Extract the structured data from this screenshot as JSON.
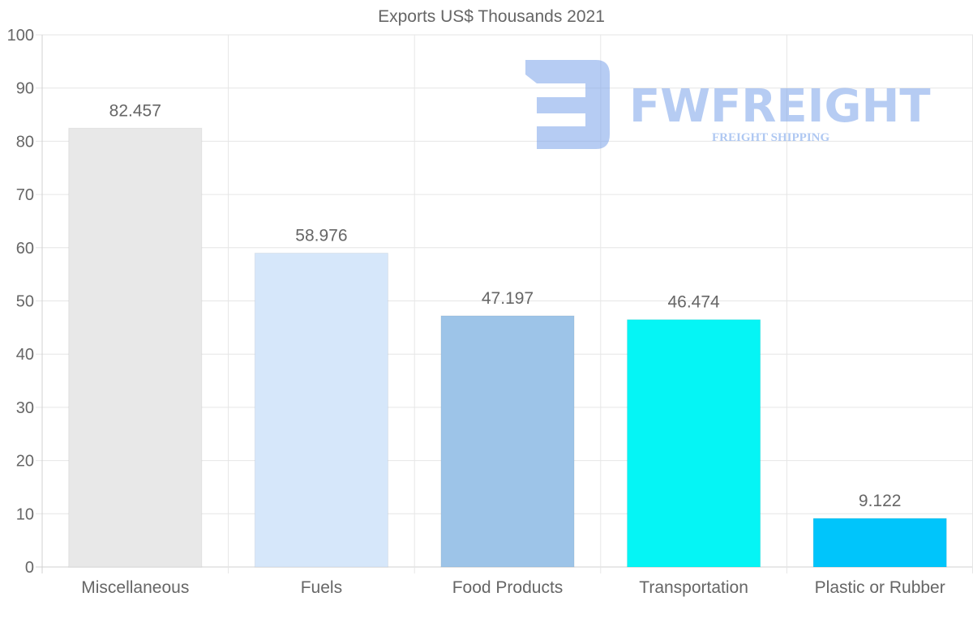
{
  "chart_data": {
    "type": "bar",
    "title": "Exports US$ Thousands 2021",
    "categories": [
      "Miscellaneous",
      "Fuels",
      "Food Products",
      "Transportation",
      "Plastic or Rubber"
    ],
    "values": [
      82.457,
      58.976,
      47.197,
      46.474,
      9.122
    ],
    "value_labels": [
      "82.457",
      "58.976",
      "47.197",
      "46.474",
      "9.122"
    ],
    "colors": [
      "#e8e8e8",
      "#d6e7fa",
      "#9dc4e8",
      "#05f5f5",
      "#00c5fb"
    ],
    "ylim": [
      0,
      100
    ],
    "yticks": [
      "0",
      "10",
      "20",
      "30",
      "40",
      "50",
      "60",
      "70",
      "80",
      "90",
      "100"
    ],
    "xlabel": "",
    "ylabel": "",
    "grid": true
  },
  "watermark": {
    "brand": "FWFREIGHT",
    "tagline": "FREIGHT SHIPPING",
    "color": "#7aa3ea"
  }
}
